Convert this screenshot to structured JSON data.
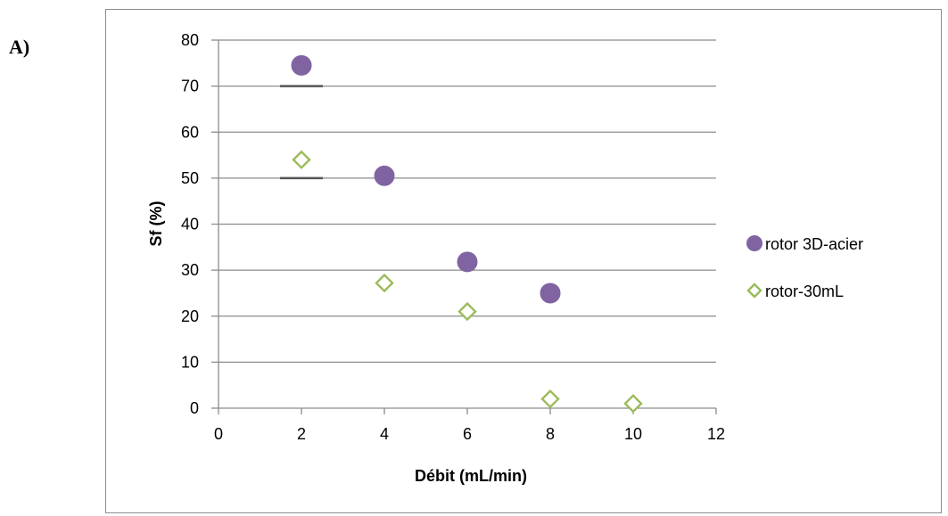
{
  "panel_label": "A)",
  "chart_data": {
    "type": "scatter",
    "title": "",
    "xlabel": "Débit (mL/min)",
    "ylabel": "Sf (%)",
    "xlim": [
      0,
      12
    ],
    "ylim": [
      0,
      80
    ],
    "x_ticks": [
      "0",
      "2",
      "4",
      "6",
      "8",
      "10",
      "12"
    ],
    "y_ticks": [
      "0",
      "10",
      "20",
      "30",
      "40",
      "50",
      "60",
      "70",
      "80"
    ],
    "grid": "horizontal",
    "legend_position": "right",
    "series": [
      {
        "name": "rotor 3D-acier",
        "marker": "circle",
        "color": "#8064A2",
        "points": [
          {
            "x": 2,
            "y": 74.5
          },
          {
            "x": 4,
            "y": 50.5
          },
          {
            "x": 6,
            "y": 31.8
          },
          {
            "x": 8,
            "y": 25
          }
        ]
      },
      {
        "name": "rotor-30mL",
        "marker": "diamond",
        "color": "#9BBB59",
        "points": [
          {
            "x": 2,
            "y": 54
          },
          {
            "x": 4,
            "y": 27.2
          },
          {
            "x": 6,
            "y": 21
          },
          {
            "x": 8,
            "y": 2
          },
          {
            "x": 10,
            "y": 1
          }
        ]
      }
    ],
    "reference_marks": [
      {
        "x": 2,
        "y": 70
      },
      {
        "x": 2,
        "y": 50
      }
    ]
  }
}
